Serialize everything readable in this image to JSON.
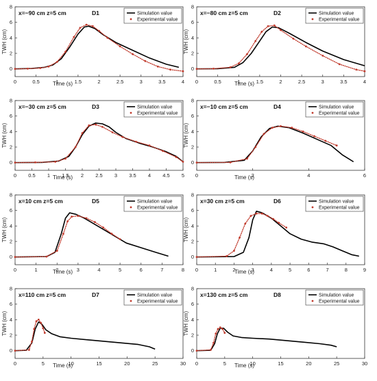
{
  "figure": {
    "sim_label": "Simulation value",
    "exp_label": "Experimental value",
    "xlabel": "Time (s)",
    "ylabel": "TWH (cm)"
  },
  "colors": {
    "simulation": "#000000",
    "experimental": "#c0392b",
    "axis": "#333333"
  },
  "chart_data": [
    {
      "id": "D1",
      "type": "line",
      "title": "D1",
      "condition": "x=−90 cm  z=5 cm",
      "xlim": [
        0,
        4
      ],
      "ylim": [
        -1,
        8
      ],
      "xticks": [
        0,
        0.5,
        1,
        1.5,
        2,
        2.5,
        3,
        3.5,
        4
      ],
      "yticks": [
        0,
        2,
        4,
        6,
        8
      ],
      "series": [
        {
          "name": "Simulation value",
          "style": "line",
          "x": [
            0,
            0.4,
            0.7,
            0.9,
            1.1,
            1.3,
            1.5,
            1.65,
            1.75,
            1.9,
            2.1,
            2.4,
            2.8,
            3.2,
            3.6,
            3.9
          ],
          "y": [
            0,
            0.05,
            0.2,
            0.5,
            1.3,
            2.8,
            4.5,
            5.4,
            5.5,
            5.2,
            4.4,
            3.4,
            2.4,
            1.4,
            0.6,
            0.2
          ]
        },
        {
          "name": "Experimental value",
          "style": "markers",
          "x": [
            0,
            0.3,
            0.6,
            0.8,
            1.0,
            1.2,
            1.4,
            1.55,
            1.7,
            1.85,
            2.0,
            2.2,
            2.5,
            2.8,
            3.1,
            3.4,
            3.7,
            4.0
          ],
          "y": [
            0,
            0.02,
            0.1,
            0.3,
            0.9,
            2.2,
            4.1,
            5.3,
            5.7,
            5.5,
            4.9,
            4.0,
            2.9,
            1.9,
            1.0,
            0.3,
            -0.1,
            -0.3
          ]
        }
      ]
    },
    {
      "id": "D2",
      "type": "line",
      "title": "D2",
      "condition": "x=−80 cm  z=5 cm",
      "xlim": [
        0,
        4
      ],
      "ylim": [
        -1,
        8
      ],
      "xticks": [
        0,
        0.5,
        1,
        1.5,
        2,
        2.5,
        3,
        3.5,
        4
      ],
      "yticks": [
        0,
        2,
        4,
        6,
        8
      ],
      "series": [
        {
          "name": "Simulation value",
          "style": "line",
          "x": [
            0,
            0.5,
            0.9,
            1.1,
            1.3,
            1.5,
            1.65,
            1.8,
            1.95,
            2.2,
            2.6,
            3.0,
            3.5,
            4.0
          ],
          "y": [
            0,
            0.02,
            0.2,
            0.8,
            2.0,
            3.6,
            4.8,
            5.4,
            5.3,
            4.6,
            3.4,
            2.3,
            1.2,
            0.4
          ]
        },
        {
          "name": "Experimental value",
          "style": "markers",
          "x": [
            0,
            0.4,
            0.8,
            1.0,
            1.2,
            1.4,
            1.55,
            1.7,
            1.85,
            2.0,
            2.3,
            2.6,
            3.0,
            3.4,
            3.8,
            4.0
          ],
          "y": [
            0,
            0.02,
            0.2,
            0.7,
            1.9,
            3.6,
            4.8,
            5.5,
            5.6,
            5.0,
            3.9,
            2.9,
            1.7,
            0.6,
            -0.1,
            -0.3
          ]
        }
      ]
    },
    {
      "id": "D3",
      "type": "line",
      "title": "D3",
      "condition": "x=−30 cm  z=5 cm",
      "xlim": [
        0,
        5
      ],
      "ylim": [
        -1,
        8
      ],
      "xticks": [
        0,
        0.5,
        1,
        1.5,
        2,
        2.5,
        3,
        3.5,
        4,
        4.5,
        5
      ],
      "yticks": [
        0,
        2,
        4,
        6,
        8
      ],
      "series": [
        {
          "name": "Simulation value",
          "style": "line",
          "x": [
            0,
            0.8,
            1.3,
            1.6,
            1.8,
            2.0,
            2.2,
            2.4,
            2.6,
            2.8,
            3.0,
            3.3,
            3.7,
            4.1,
            4.5,
            4.8,
            5.0
          ],
          "y": [
            0,
            0.02,
            0.2,
            0.8,
            2.0,
            3.6,
            4.7,
            5.1,
            5.0,
            4.6,
            3.9,
            3.1,
            2.5,
            2.0,
            1.4,
            0.8,
            0.1
          ]
        },
        {
          "name": "Experimental value",
          "style": "markers",
          "x": [
            0,
            0.6,
            1.2,
            1.5,
            1.8,
            2.0,
            2.2,
            2.4,
            2.6,
            2.9,
            3.2,
            3.6,
            4.0,
            4.4,
            4.8,
            5.0
          ],
          "y": [
            0,
            0.02,
            0.1,
            0.5,
            2.0,
            3.8,
            4.8,
            4.9,
            4.6,
            3.9,
            3.3,
            2.7,
            2.2,
            1.5,
            0.7,
            0.1
          ]
        }
      ]
    },
    {
      "id": "D4",
      "type": "line",
      "title": "D4",
      "condition": "x=−10 cm  z=5 cm",
      "xlim": [
        0,
        6
      ],
      "ylim": [
        -1,
        8
      ],
      "xticks": [
        0,
        2,
        4,
        6
      ],
      "yticks": [
        0,
        2,
        4,
        6,
        8
      ],
      "series": [
        {
          "name": "Simulation value",
          "style": "line",
          "x": [
            0,
            1.0,
            1.7,
            2.0,
            2.3,
            2.6,
            2.9,
            3.3,
            3.8,
            4.3,
            4.8,
            5.2,
            5.6
          ],
          "y": [
            0,
            0.02,
            0.3,
            1.5,
            3.3,
            4.4,
            4.7,
            4.5,
            3.8,
            3.0,
            2.2,
            1.0,
            0.1
          ]
        },
        {
          "name": "Experimental value",
          "style": "markers",
          "x": [
            0,
            1.2,
            1.8,
            2.1,
            2.4,
            2.7,
            3.0,
            3.4,
            3.8,
            4.2,
            4.6,
            5.0
          ],
          "y": [
            0,
            0.02,
            0.5,
            2.0,
            3.7,
            4.5,
            4.7,
            4.5,
            4.0,
            3.4,
            2.8,
            2.2
          ]
        }
      ]
    },
    {
      "id": "D5",
      "type": "line",
      "title": "D5",
      "condition": "x=10 cm  z=5 cm",
      "xlim": [
        0,
        8
      ],
      "ylim": [
        -1,
        8
      ],
      "xticks": [
        0,
        1,
        2,
        3,
        4,
        5,
        6,
        7,
        8
      ],
      "yticks": [
        0,
        2,
        4,
        6,
        8
      ],
      "series": [
        {
          "name": "Simulation value",
          "style": "line",
          "x": [
            0,
            1.5,
            1.9,
            2.2,
            2.4,
            2.6,
            2.9,
            3.3,
            3.8,
            4.3,
            4.8,
            5.3,
            6.0,
            6.7,
            7.3
          ],
          "y": [
            0,
            0.05,
            0.6,
            3.0,
            5.0,
            5.7,
            5.5,
            5.0,
            4.2,
            3.4,
            2.6,
            1.8,
            1.2,
            0.6,
            0.1
          ]
        },
        {
          "name": "Experimental value",
          "style": "markers",
          "x": [
            0,
            1.5,
            2.0,
            2.3,
            2.5,
            2.7,
            3.0,
            3.4,
            3.8,
            4.2,
            4.6,
            5.0
          ],
          "y": [
            0,
            0.05,
            0.8,
            3.0,
            4.6,
            5.2,
            5.3,
            5.0,
            4.5,
            3.8,
            3.0,
            2.3
          ]
        }
      ]
    },
    {
      "id": "D6",
      "type": "line",
      "title": "D6",
      "condition": "x=30 cm  z=5 cm",
      "xlim": [
        0,
        9
      ],
      "ylim": [
        -1,
        8
      ],
      "xticks": [
        0,
        1,
        2,
        3,
        4,
        5,
        6,
        7,
        8,
        9
      ],
      "yticks": [
        0,
        2,
        4,
        6,
        8
      ],
      "series": [
        {
          "name": "Simulation value",
          "style": "line",
          "x": [
            0,
            2.0,
            2.5,
            2.8,
            3.0,
            3.2,
            3.5,
            4.0,
            4.5,
            5.0,
            5.6,
            6.2,
            6.8,
            7.3,
            7.8,
            8.3,
            8.7
          ],
          "y": [
            0,
            0.05,
            0.6,
            2.5,
            4.8,
            5.9,
            5.7,
            5.0,
            4.0,
            3.0,
            2.3,
            1.9,
            1.7,
            1.3,
            0.8,
            0.3,
            0.1
          ]
        },
        {
          "name": "Experimental value",
          "style": "markers",
          "x": [
            0,
            1.6,
            2.0,
            2.3,
            2.6,
            2.9,
            3.2,
            3.5,
            3.8,
            4.1,
            4.4,
            4.8
          ],
          "y": [
            0,
            0.1,
            0.8,
            2.5,
            4.3,
            5.3,
            5.6,
            5.6,
            5.3,
            4.9,
            4.4,
            3.8
          ]
        }
      ]
    },
    {
      "id": "D7",
      "type": "line",
      "title": "D7",
      "condition": "x=110 cm  z=5 cm",
      "xlim": [
        0,
        30
      ],
      "ylim": [
        -1,
        8
      ],
      "xticks": [
        0,
        5,
        10,
        15,
        20,
        25,
        30
      ],
      "yticks": [
        0,
        2,
        4,
        6,
        8
      ],
      "series": [
        {
          "name": "Simulation value",
          "style": "line",
          "x": [
            0,
            2.0,
            3.0,
            3.6,
            4.2,
            4.8,
            5.5,
            6.5,
            8,
            10,
            13,
            16,
            19,
            22,
            24,
            25
          ],
          "y": [
            0,
            0.05,
            1.0,
            2.8,
            3.7,
            3.4,
            2.7,
            2.2,
            1.8,
            1.6,
            1.4,
            1.2,
            1.0,
            0.8,
            0.5,
            0.2
          ]
        },
        {
          "name": "Experimental value",
          "style": "markers",
          "x": [
            0,
            2.5,
            3.0,
            3.4,
            3.8,
            4.2,
            4.6,
            5.0,
            5.3
          ],
          "y": [
            0,
            0.1,
            1.2,
            2.8,
            3.8,
            4.0,
            3.6,
            2.9,
            2.3
          ]
        }
      ]
    },
    {
      "id": "D8",
      "type": "line",
      "title": "D8",
      "condition": "x=130 cm  z=5 cm",
      "xlim": [
        0,
        30
      ],
      "ylim": [
        -1,
        8
      ],
      "xticks": [
        0,
        5,
        10,
        15,
        20,
        25,
        30
      ],
      "yticks": [
        0,
        2,
        4,
        6,
        8
      ],
      "series": [
        {
          "name": "Simulation value",
          "style": "line",
          "x": [
            0,
            2.5,
            3.2,
            3.7,
            4.2,
            4.8,
            5.5,
            6.5,
            8,
            10,
            13,
            16,
            19,
            22,
            24,
            25
          ],
          "y": [
            0,
            0.05,
            0.9,
            2.2,
            2.9,
            2.9,
            2.4,
            1.9,
            1.7,
            1.6,
            1.5,
            1.3,
            1.1,
            0.9,
            0.7,
            0.5
          ]
        },
        {
          "name": "Experimental value",
          "style": "markers",
          "x": [
            0,
            2.5,
            3.0,
            3.4,
            3.8,
            4.2,
            4.6,
            5.0
          ],
          "y": [
            0,
            0.1,
            1.0,
            2.2,
            2.8,
            3.0,
            2.8,
            2.3
          ]
        }
      ]
    }
  ]
}
